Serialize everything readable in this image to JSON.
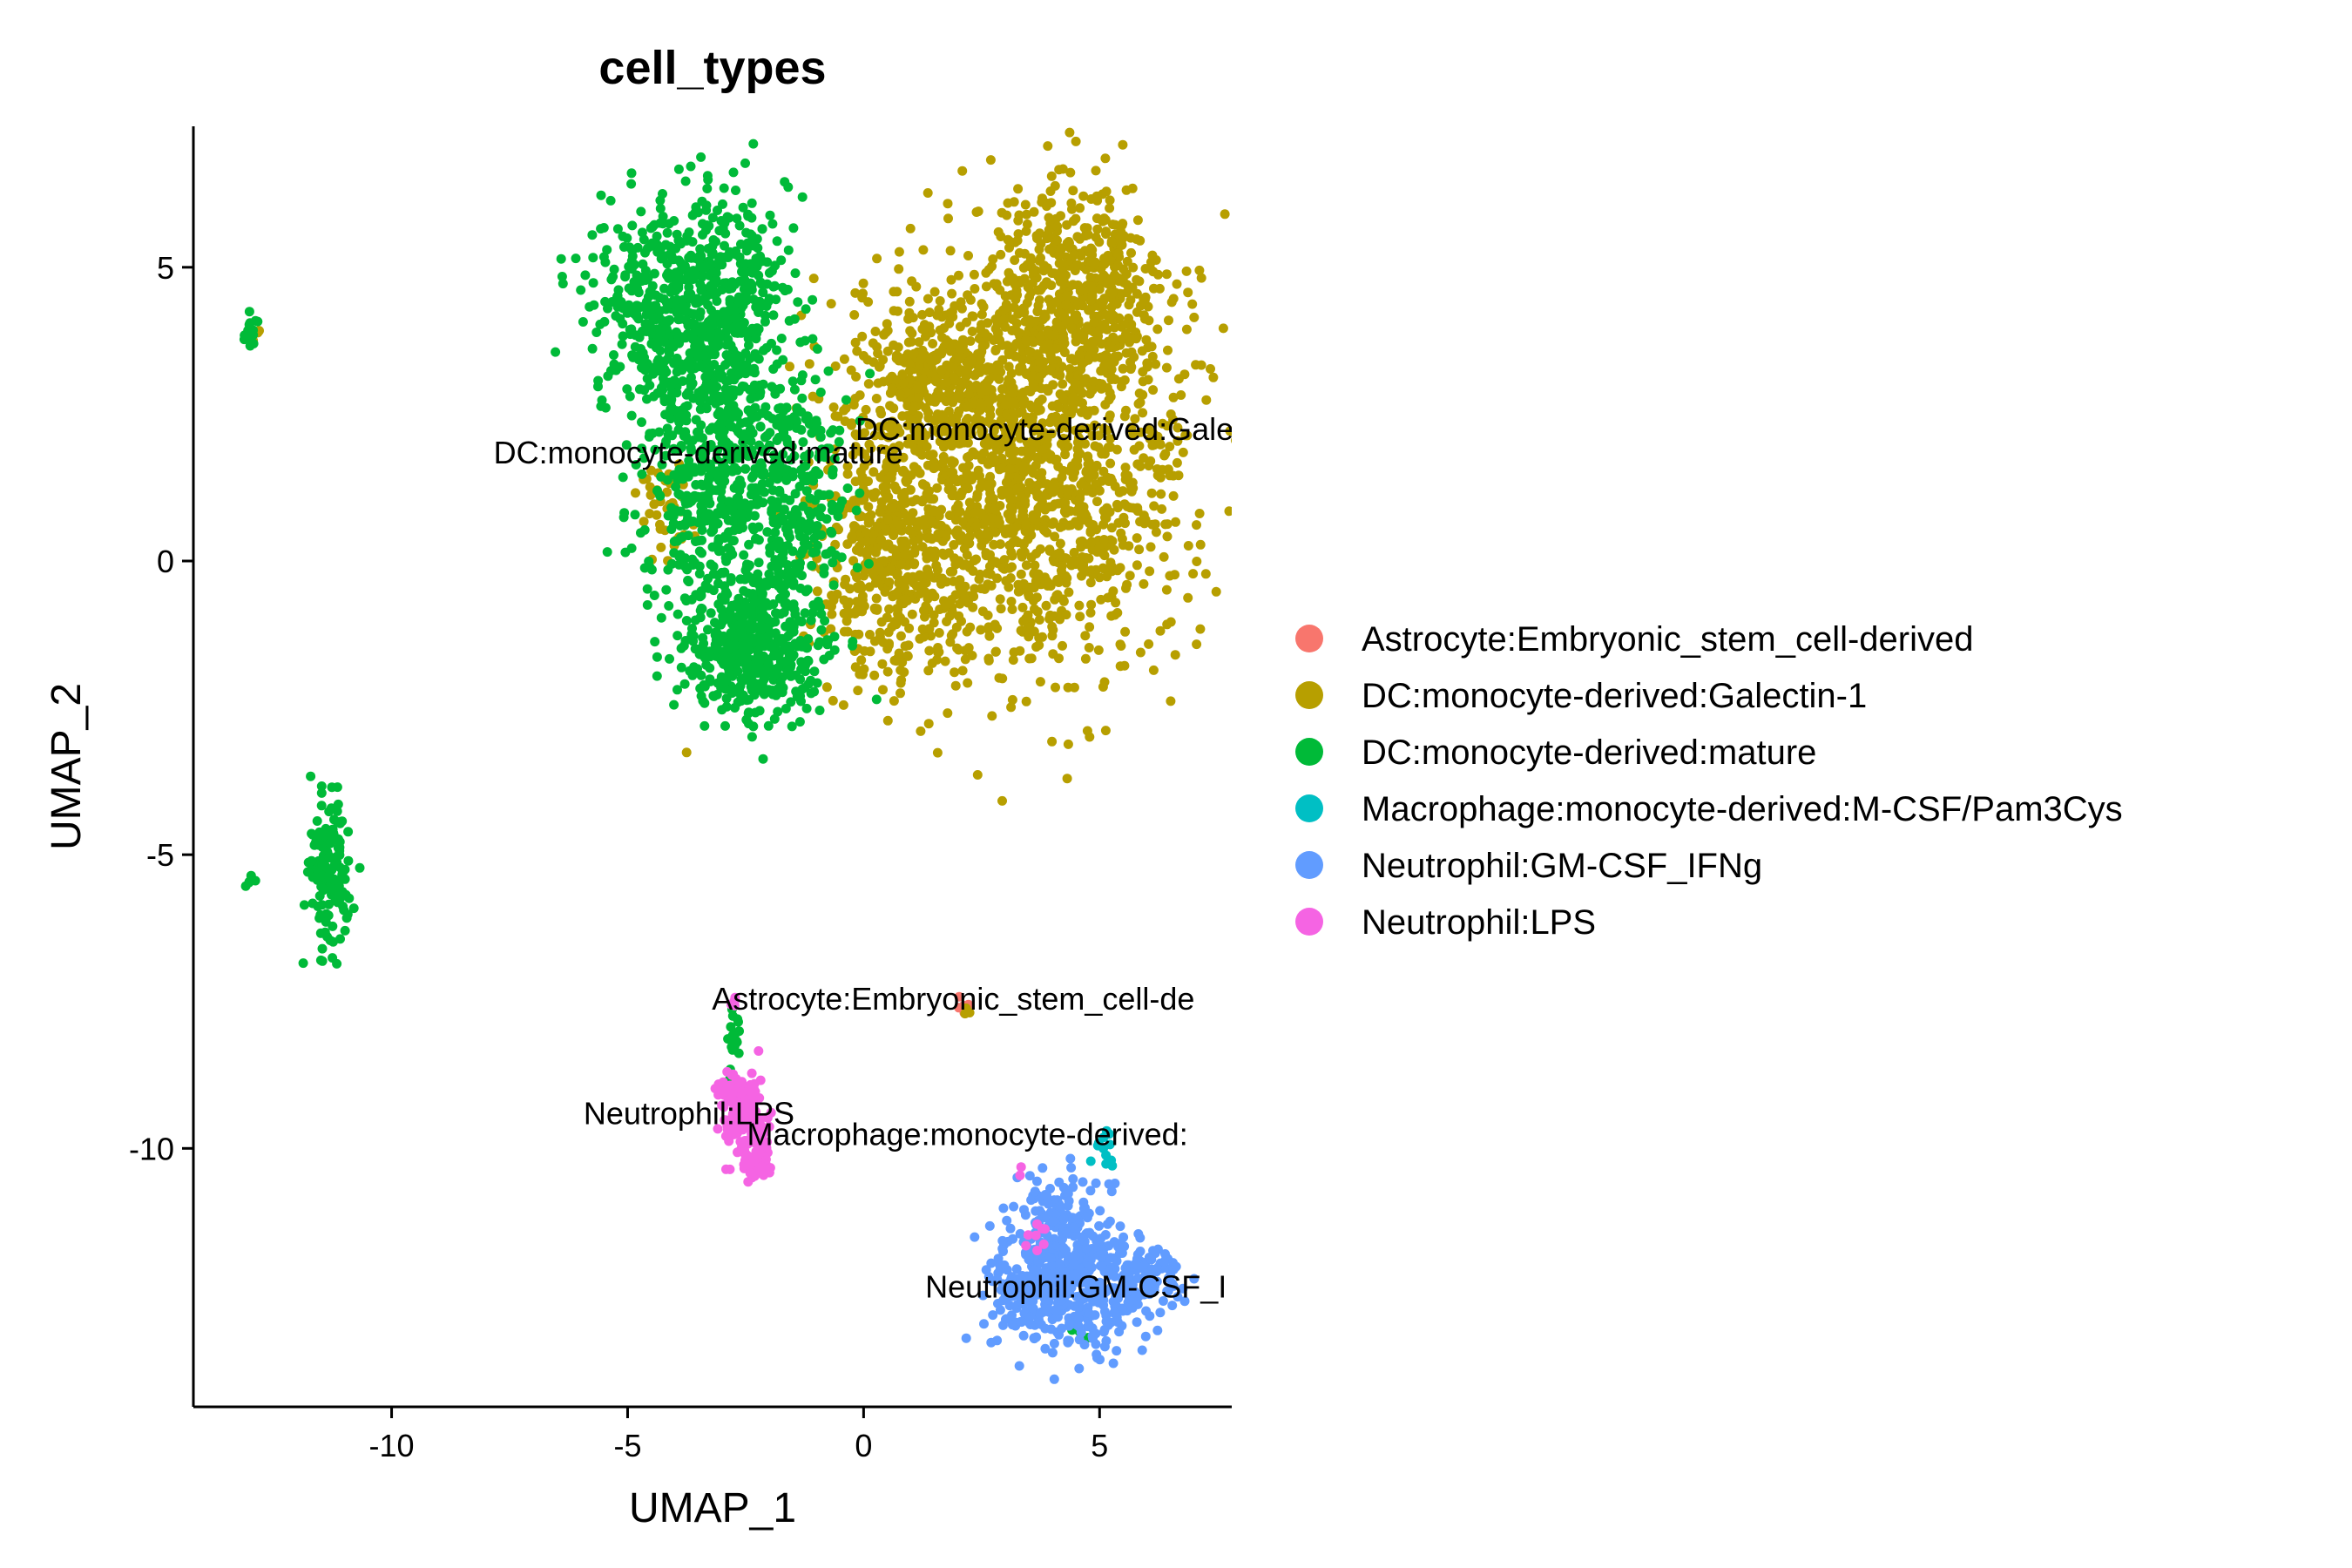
{
  "chart_data": {
    "type": "scatter",
    "title": "cell_types",
    "xlabel": "UMAP_1",
    "ylabel": "UMAP_2",
    "xlim": [
      -14.2,
      7.8
    ],
    "ylim": [
      -14.4,
      7.4
    ],
    "xticks": [
      -10,
      -5,
      0,
      5
    ],
    "xtick_labels": [
      "-10",
      "-5",
      "0",
      "5"
    ],
    "yticks": [
      5,
      0,
      -5,
      -10
    ],
    "ytick_labels": [
      "5",
      "0",
      "-5",
      "-10"
    ],
    "grid": false,
    "legend_position": "right",
    "series": [
      {
        "name": "Astrocyte:Embryonic_stem_cell-derived",
        "color": "#F8766D",
        "clusters": [
          {
            "cx": 2.1,
            "cy": -7.5,
            "sx": 0.1,
            "sy": 0.1,
            "n": 8
          }
        ]
      },
      {
        "name": "DC:monocyte-derived:Galectin-1",
        "color": "#B79F00",
        "clusters": [
          {
            "cx": 3.3,
            "cy": 1.5,
            "sx": 1.8,
            "sy": 1.7,
            "n": 1600
          },
          {
            "cx": 4.5,
            "cy": 4.5,
            "sx": 1.0,
            "sy": 1.0,
            "n": 500
          },
          {
            "cx": 0.5,
            "cy": 0.0,
            "sx": 0.7,
            "sy": 1.0,
            "n": 350
          },
          {
            "cx": 1.5,
            "cy": 3.3,
            "sx": 0.8,
            "sy": 0.6,
            "n": 250
          },
          {
            "cx": -4.2,
            "cy": 0.8,
            "sx": 0.3,
            "sy": 0.6,
            "n": 40
          },
          {
            "cx": -12.85,
            "cy": 3.9,
            "sx": 0.05,
            "sy": 0.05,
            "n": 4
          },
          {
            "cx": 2.2,
            "cy": -7.7,
            "sx": 0.06,
            "sy": 0.05,
            "n": 3
          }
        ]
      },
      {
        "name": "DC:monocyte-derived:mature",
        "color": "#00BA38",
        "clusters": [
          {
            "cx": -3.6,
            "cy": 4.4,
            "sx": 1.0,
            "sy": 0.9,
            "n": 700
          },
          {
            "cx": -3.0,
            "cy": 1.6,
            "sx": 0.9,
            "sy": 1.2,
            "n": 600
          },
          {
            "cx": -2.4,
            "cy": -1.5,
            "sx": 0.7,
            "sy": 0.55,
            "n": 450
          },
          {
            "cx": -1.3,
            "cy": 0.8,
            "sx": 0.5,
            "sy": 1.2,
            "n": 200
          },
          {
            "cx": -13.0,
            "cy": 3.9,
            "sx": 0.08,
            "sy": 0.12,
            "n": 22
          },
          {
            "cx": -11.3,
            "cy": -5.3,
            "sx": 0.22,
            "sy": 0.65,
            "n": 160
          },
          {
            "cx": -13.0,
            "cy": -5.45,
            "sx": 0.08,
            "sy": 0.06,
            "n": 5
          },
          {
            "cx": -2.75,
            "cy": -8.2,
            "sx": 0.07,
            "sy": 0.4,
            "n": 22
          },
          {
            "cx": 4.6,
            "cy": -13.1,
            "sx": 0.2,
            "sy": 0.1,
            "n": 3
          }
        ]
      },
      {
        "name": "Macrophage:monocyte-derived:M-CSF/Pam3Cys",
        "color": "#00BFC4",
        "clusters": [
          {
            "cx": 5.1,
            "cy": -9.9,
            "sx": 0.12,
            "sy": 0.2,
            "n": 14
          }
        ]
      },
      {
        "name": "Neutrophil:GM-CSF_IFNg",
        "color": "#619CFF",
        "clusters": [
          {
            "cx": 4.3,
            "cy": -12.3,
            "sx": 0.8,
            "sy": 0.55,
            "n": 520
          },
          {
            "cx": 4.1,
            "cy": -11.1,
            "sx": 0.45,
            "sy": 0.4,
            "n": 90
          },
          {
            "cx": 6.0,
            "cy": -12.3,
            "sx": 0.35,
            "sy": 0.3,
            "n": 70
          }
        ]
      },
      {
        "name": "Neutrophil:LPS",
        "color": "#F564E3",
        "clusters": [
          {
            "cx": -2.6,
            "cy": -9.4,
            "sx": 0.25,
            "sy": 0.3,
            "n": 180
          },
          {
            "cx": -2.3,
            "cy": -10.2,
            "sx": 0.2,
            "sy": 0.2,
            "n": 60
          },
          {
            "cx": -2.75,
            "cy": -7.6,
            "sx": 0.05,
            "sy": 0.1,
            "n": 6
          },
          {
            "cx": 3.7,
            "cy": -11.7,
            "sx": 0.1,
            "sy": 0.2,
            "n": 8
          },
          {
            "cx": 3.3,
            "cy": -10.4,
            "sx": 0.04,
            "sy": 0.04,
            "n": 2
          }
        ]
      }
    ],
    "cluster_labels": [
      {
        "text": "DC:monocyte-derived:Galec",
        "x": 4.0,
        "y": 2.2
      },
      {
        "text": "DC:monocyte-derived:mature",
        "x": -3.5,
        "y": 1.8
      },
      {
        "text": "Astrocyte:Embryonic_stem_cell-de",
        "x": 1.9,
        "y": -7.5
      },
      {
        "text": "Neutrophil:LPS",
        "x": -3.7,
        "y": -9.45
      },
      {
        "text": "Macrophage:monocyte-derived:",
        "x": 2.2,
        "y": -9.8
      },
      {
        "text": "Neutrophil:GM-CSF_I",
        "x": 4.5,
        "y": -12.4
      }
    ]
  }
}
